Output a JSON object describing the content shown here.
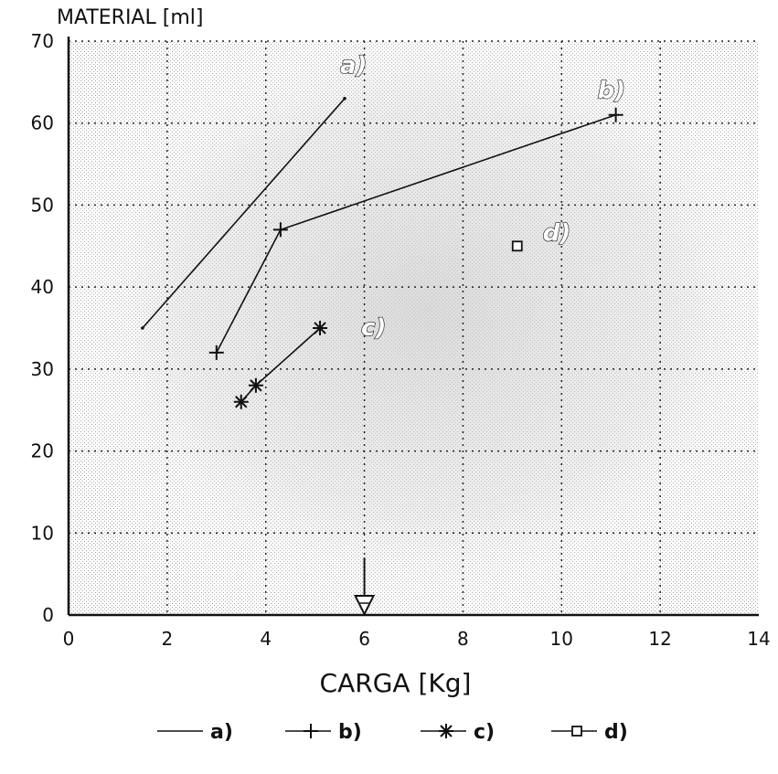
{
  "chart_data": {
    "type": "line",
    "xlabel": "CARGA [Kg]",
    "ylabel": "MATERIAL [ml]",
    "xlim": [
      0,
      14
    ],
    "ylim": [
      0,
      70
    ],
    "xticks": [
      "0",
      "2",
      "4",
      "6",
      "8",
      "10",
      "12",
      "14"
    ],
    "yticks": [
      "0",
      "10",
      "20",
      "30",
      "40",
      "50",
      "60",
      "70"
    ],
    "grid": true,
    "legend_position": "bottom",
    "series": [
      {
        "name": "a)",
        "marker": "dot",
        "points": [
          [
            1.5,
            35
          ],
          [
            5.6,
            63
          ]
        ],
        "annotation": "a)"
      },
      {
        "name": "b)",
        "marker": "plus",
        "points": [
          [
            3.0,
            32
          ],
          [
            4.3,
            47
          ],
          [
            11.1,
            61
          ]
        ],
        "annotation": "b)"
      },
      {
        "name": "c)",
        "marker": "asterisk",
        "points": [
          [
            3.5,
            26
          ],
          [
            3.8,
            28
          ],
          [
            5.1,
            35
          ]
        ],
        "annotation": "c)"
      },
      {
        "name": "d)",
        "marker": "square",
        "points": [
          [
            9.1,
            45
          ]
        ],
        "annotation": "d)"
      }
    ],
    "arrow_marker": {
      "x": 6,
      "y_top": 7,
      "y_bottom": 1
    }
  }
}
